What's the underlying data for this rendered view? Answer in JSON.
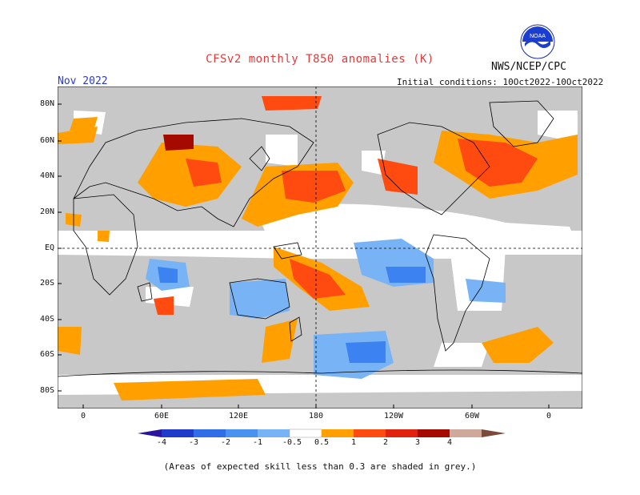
{
  "header": {
    "title": "CFSv2 monthly T850 anomalies (K)",
    "month": "Nov 2022",
    "agency": "NWS/NCEP/CPC",
    "initial_conditions": "Initial conditions: 10Oct2022-10Oct2022",
    "logo_text": "NOAA"
  },
  "map": {
    "lat_labels": [
      "80N",
      "60N",
      "40N",
      "20N",
      "EQ",
      "20S",
      "40S",
      "60S",
      "80S"
    ],
    "lon_labels": [
      "0",
      "60E",
      "120E",
      "180",
      "120W",
      "60W",
      "0"
    ],
    "colors": {
      "skill_grey": "#c8c8c8",
      "land_outline": "#000000",
      "light_orange": "#ff9f00",
      "orange_red": "#ff4a10",
      "red": "#e0220f",
      "dark_red": "#a50a00",
      "light_blue": "#78b4f5",
      "blue": "#3c82f0"
    }
  },
  "colorbar": {
    "labels": [
      "-4",
      "-3",
      "-2",
      "-1",
      "-0.5",
      "0.5",
      "1",
      "2",
      "3",
      "4"
    ],
    "colors": [
      "#2a14a0",
      "#1e3cc8",
      "#2f6ee6",
      "#4a92f0",
      "#78b4f5",
      "#ffffff",
      "#ff9f00",
      "#ff4a10",
      "#e0220f",
      "#a50a00",
      "#cfa89c",
      "#7a4a3a"
    ]
  },
  "footnote": "(Areas of expected skill less than 0.3 are shaded in grey.)"
}
